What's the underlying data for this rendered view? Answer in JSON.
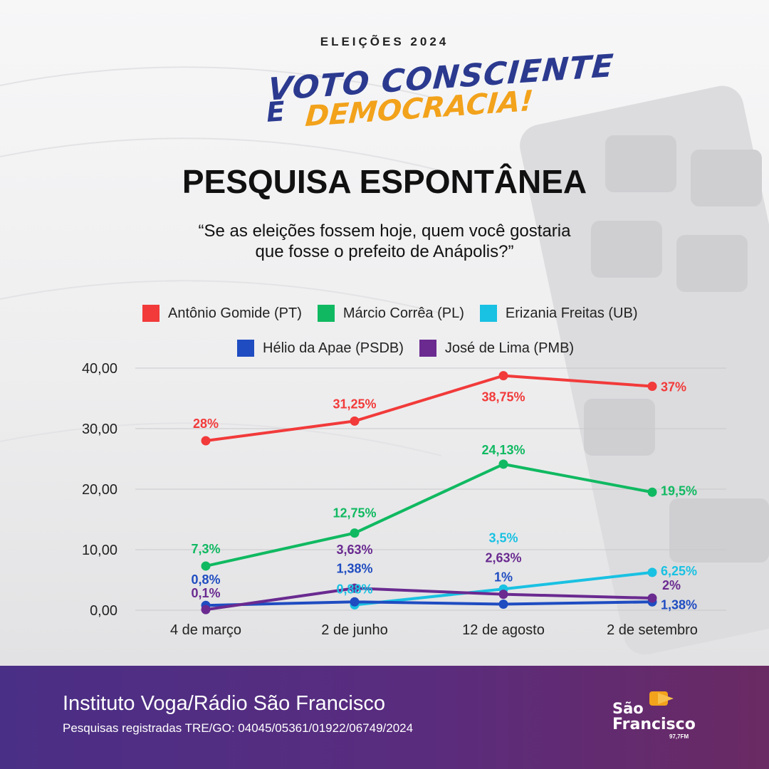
{
  "header": {
    "eyebrow": "ELEIÇÕES 2024",
    "slogan_line1": "VOTO CONSCIENTE",
    "slogan_e": "É",
    "slogan_line2": "DEMOCRACIA!"
  },
  "title": "PESQUISA ESPONTÂNEA",
  "subtitle_line1": "“Se as eleições fossem hoje, quem você gostaria",
  "subtitle_line2": "que fosse o prefeito de Anápolis?”",
  "colors": {
    "red": "#f23a3a",
    "green": "#10b961",
    "cyan": "#19c1e2",
    "blue": "#1f4cc1",
    "purple": "#6a2a90",
    "grid": "#c9c9cc"
  },
  "chart_data": {
    "type": "line",
    "categories": [
      "4 de março",
      "2 de junho",
      "12 de agosto",
      "2 de setembro"
    ],
    "ylim": [
      0,
      40
    ],
    "yticks": [
      "0,00",
      "10,00",
      "20,00",
      "30,00",
      "40,00"
    ],
    "ytick_values": [
      0,
      10,
      20,
      30,
      40
    ],
    "grid": true,
    "legend_position": "top",
    "series": [
      {
        "name": "Antônio Gomide (PT)",
        "color": "#f23a3a",
        "points": [
          {
            "c": 0,
            "v": 28
          },
          {
            "c": 1,
            "v": 31.25
          },
          {
            "c": 2,
            "v": 38.75
          },
          {
            "c": 3,
            "v": 37
          }
        ],
        "labels": [
          "28%",
          "31,25%",
          "38,75%",
          "37%"
        ]
      },
      {
        "name": "Márcio Corrêa (PL)",
        "color": "#10b961",
        "points": [
          {
            "c": 0,
            "v": 7.3
          },
          {
            "c": 1,
            "v": 12.75
          },
          {
            "c": 2,
            "v": 24.13
          },
          {
            "c": 3,
            "v": 19.5
          }
        ],
        "labels": [
          "7,3%",
          "12,75%",
          "24,13%",
          "19,5%"
        ]
      },
      {
        "name": "Erizania Freitas (UB)",
        "color": "#19c1e2",
        "points": [
          {
            "c": 1,
            "v": 0.88
          },
          {
            "c": 2,
            "v": 3.5
          },
          {
            "c": 3,
            "v": 6.25
          }
        ],
        "labels": [
          "0,88%",
          "3,5%",
          "6,25%"
        ]
      },
      {
        "name": "Hélio da Apae (PSDB)",
        "color": "#1f4cc1",
        "points": [
          {
            "c": 0,
            "v": 0.8
          },
          {
            "c": 1,
            "v": 1.38
          },
          {
            "c": 2,
            "v": 1
          },
          {
            "c": 3,
            "v": 1.38
          }
        ],
        "labels": [
          "0,8%",
          "1,38%",
          "1%",
          "1,38%"
        ]
      },
      {
        "name": "José de Lima (PMB)",
        "color": "#6a2a90",
        "points": [
          {
            "c": 0,
            "v": 0.1
          },
          {
            "c": 1,
            "v": 3.63
          },
          {
            "c": 2,
            "v": 2.63
          },
          {
            "c": 3,
            "v": 2
          }
        ],
        "labels": [
          "0,1%",
          "3,63%",
          "2,63%",
          "2%"
        ]
      }
    ]
  },
  "footer": {
    "title": "Instituto Voga/Rádio São Francisco",
    "subtitle": "Pesquisas registradas TRE/GO: 04045/05361/01922/06749/2024",
    "logo_line1": "São",
    "logo_line2": "Francisco",
    "logo_fm": "97,7FM"
  }
}
